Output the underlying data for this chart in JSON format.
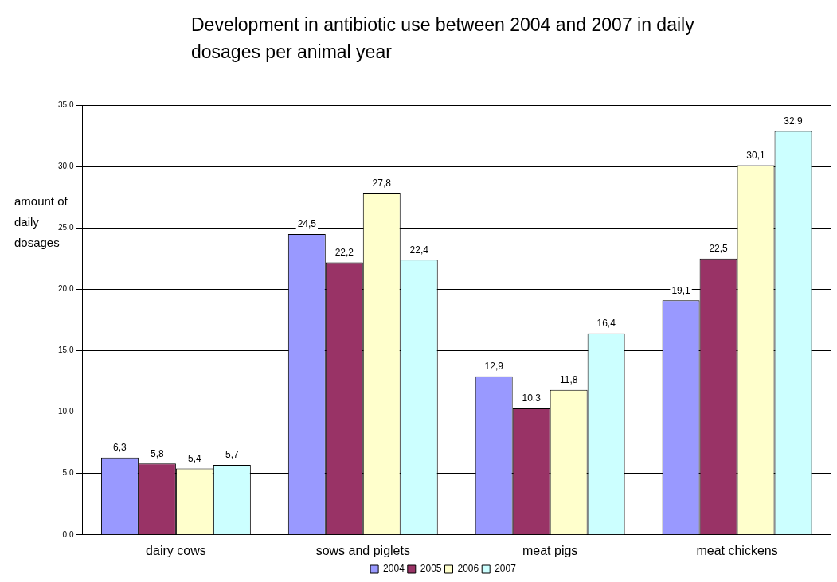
{
  "chart_data": {
    "type": "bar",
    "title": "Development in antibiotic use between 2004 and 2007 in daily dosages per animal year",
    "ylabel": "amount of daily dosages",
    "categories": [
      "dairy cows",
      "sows and piglets",
      "meat pigs",
      "meat chickens"
    ],
    "series": [
      {
        "name": "2004",
        "color": "#9999ff",
        "values": [
          6.3,
          24.5,
          12.9,
          19.1
        ],
        "value_labels": [
          "6,3",
          "24,5",
          "12,9",
          "19,1"
        ]
      },
      {
        "name": "2005",
        "color": "#993366",
        "values": [
          5.8,
          22.2,
          10.3,
          22.5
        ],
        "value_labels": [
          "5,8",
          "22,2",
          "10,3",
          "22,5"
        ]
      },
      {
        "name": "2006",
        "color": "#ffffcc",
        "values": [
          5.4,
          27.8,
          11.8,
          30.1
        ],
        "value_labels": [
          "5,4",
          "27,8",
          "11,8",
          "30,1"
        ]
      },
      {
        "name": "2007",
        "color": "#ccffff",
        "values": [
          5.7,
          22.4,
          16.4,
          32.9
        ],
        "value_labels": [
          "5,7",
          "22,4",
          "16,4",
          "32,9"
        ]
      }
    ],
    "ylim": [
      0,
      35
    ],
    "yticks": [
      {
        "value": 0,
        "label": "0.0"
      },
      {
        "value": 5,
        "label": "5.0"
      },
      {
        "value": 10,
        "label": "10.0"
      },
      {
        "value": 15,
        "label": "15.0"
      },
      {
        "value": 20,
        "label": "20.0"
      },
      {
        "value": 25,
        "label": "25.0"
      },
      {
        "value": 30,
        "label": "30.0"
      },
      {
        "value": 35,
        "label": "35.0"
      }
    ],
    "grid": "y",
    "legend": "bottom"
  }
}
